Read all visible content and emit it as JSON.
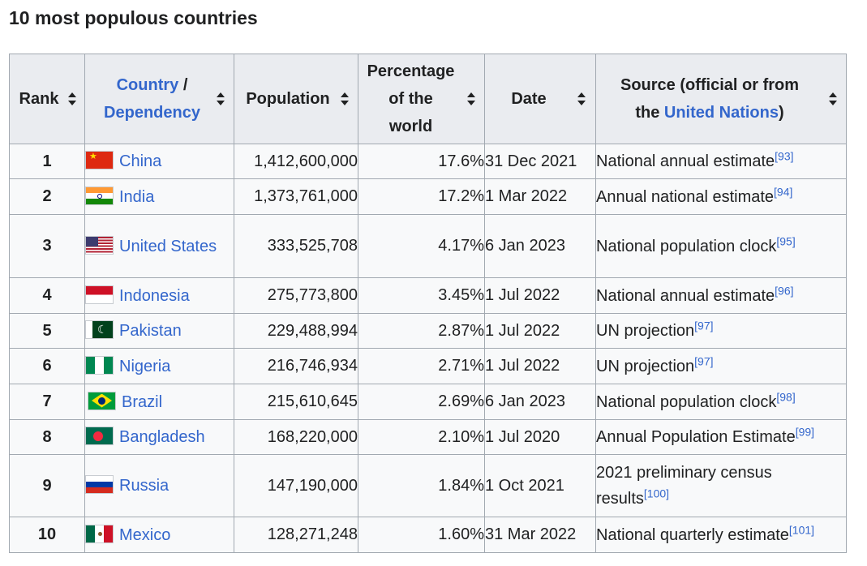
{
  "caption": "10 most populous countries",
  "headers": {
    "rank": "Rank",
    "country_link": "Country",
    "country_sep": "/",
    "dependency_link": "Dependency",
    "population": "Population",
    "percentage_line1": "Percentage",
    "percentage_line2": "of the",
    "percentage_line3": "world",
    "date": "Date",
    "source_line1": "Source (official or from",
    "source_pre": "the",
    "source_link": "United Nations",
    "source_post": ")"
  },
  "rows": [
    {
      "rank": "1",
      "flag": "flag-china",
      "country": "China",
      "population": "1,412,600,000",
      "percentage": "17.6%",
      "date": "31 Dec 2021",
      "source": "National annual estimate",
      "ref": "[93]"
    },
    {
      "rank": "2",
      "flag": "flag-india",
      "country": "India",
      "population": "1,373,761,000",
      "percentage": "17.2%",
      "date": "1 Mar 2022",
      "source": "Annual national estimate",
      "ref": "[94]"
    },
    {
      "rank": "3",
      "flag": "flag-united-states",
      "country": "United States",
      "population": "333,525,708",
      "percentage": "4.17%",
      "date": "6 Jan 2023",
      "source": "National population clock",
      "ref": "[95]"
    },
    {
      "rank": "4",
      "flag": "flag-indonesia",
      "country": "Indonesia",
      "population": "275,773,800",
      "percentage": "3.45%",
      "date": "1 Jul 2022",
      "source": "National annual estimate",
      "ref": "[96]"
    },
    {
      "rank": "5",
      "flag": "flag-pakistan",
      "country": "Pakistan",
      "population": "229,488,994",
      "percentage": "2.87%",
      "date": "1 Jul 2022",
      "source": "UN projection",
      "ref": "[97]"
    },
    {
      "rank": "6",
      "flag": "flag-nigeria",
      "country": "Nigeria",
      "population": "216,746,934",
      "percentage": "2.71%",
      "date": "1 Jul 2022",
      "source": "UN projection",
      "ref": "[97]"
    },
    {
      "rank": "7",
      "flag": "flag-brazil",
      "country": "Brazil",
      "population": "215,610,645",
      "percentage": "2.69%",
      "date": "6 Jan 2023",
      "source": "National population clock",
      "ref": "[98]"
    },
    {
      "rank": "8",
      "flag": "flag-bangladesh",
      "country": "Bangladesh",
      "population": "168,220,000",
      "percentage": "2.10%",
      "date": "1 Jul 2020",
      "source": "Annual Population Estimate",
      "ref": "[99]"
    },
    {
      "rank": "9",
      "flag": "flag-russia",
      "country": "Russia",
      "population": "147,190,000",
      "percentage": "1.84%",
      "date": "1 Oct 2021",
      "source": "2021 preliminary census results",
      "ref": "[100]"
    },
    {
      "rank": "10",
      "flag": "flag-mexico",
      "country": "Mexico",
      "population": "128,271,248",
      "percentage": "1.60%",
      "date": "31 Mar 2022",
      "source": "National quarterly estimate",
      "ref": "[101]"
    }
  ],
  "colors": {
    "link": "#3366cc",
    "header_bg": "#eaecf0",
    "cell_bg": "#f8f9fa",
    "border": "#a2a9b1",
    "text": "#202122"
  }
}
